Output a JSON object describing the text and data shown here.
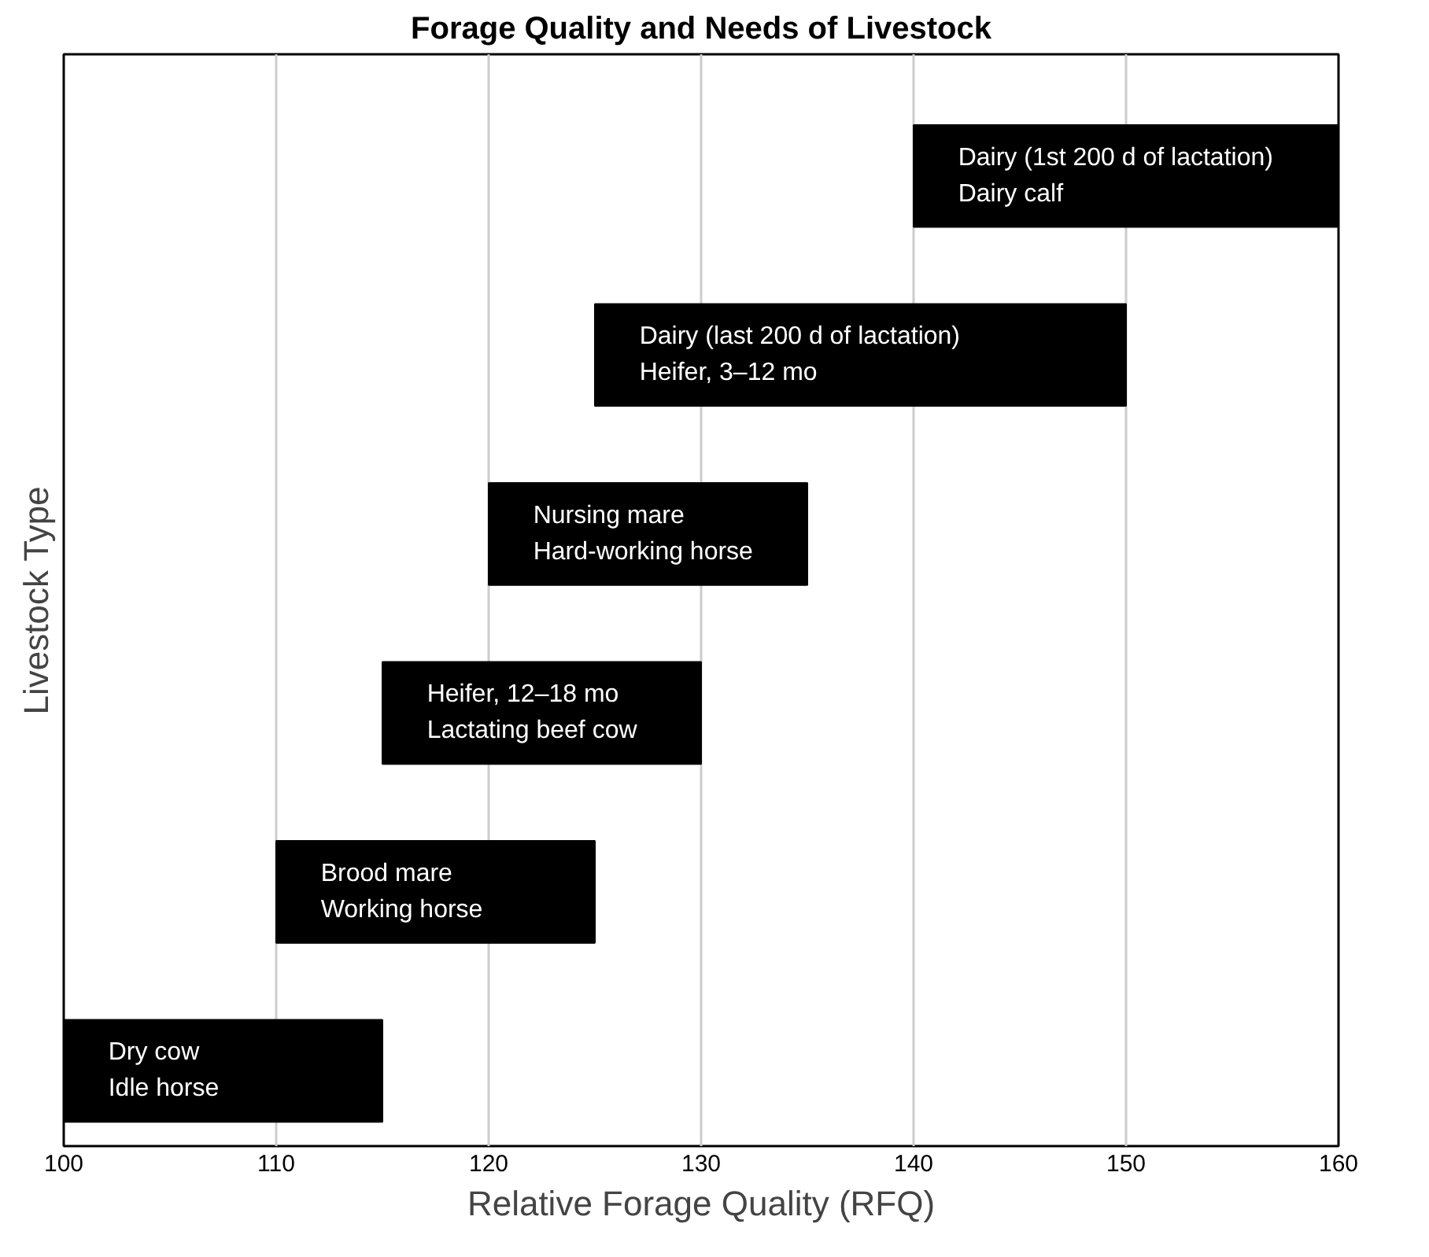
{
  "chart_data": {
    "type": "bar",
    "orientation": "horizontal",
    "title": "Forage Quality and Needs of Livestock",
    "xlabel": "Relative Forage Quality (RFQ)",
    "ylabel": "Livestock Type",
    "categories": [
      "Dairy (1st 200 d of lactation)\nDairy calf",
      "Dairy (last 200 d of lactation)\nHeifer, 3–12 mo",
      "Nursing mare\nHard-working horse",
      "Heifer, 12–18 mo\nLactating beef cow",
      "Brood mare\nWorking horse",
      "Dry cow\nIdle horse"
    ],
    "base": [
      140,
      125,
      120,
      115,
      110,
      100
    ],
    "values": [
      20,
      25,
      15,
      15,
      15,
      15
    ],
    "color": "#000000",
    "xlim": [
      100,
      160
    ],
    "xticks": [
      100,
      110,
      120,
      130,
      140,
      150,
      160
    ],
    "grid": "x",
    "tick_labels": "x"
  }
}
